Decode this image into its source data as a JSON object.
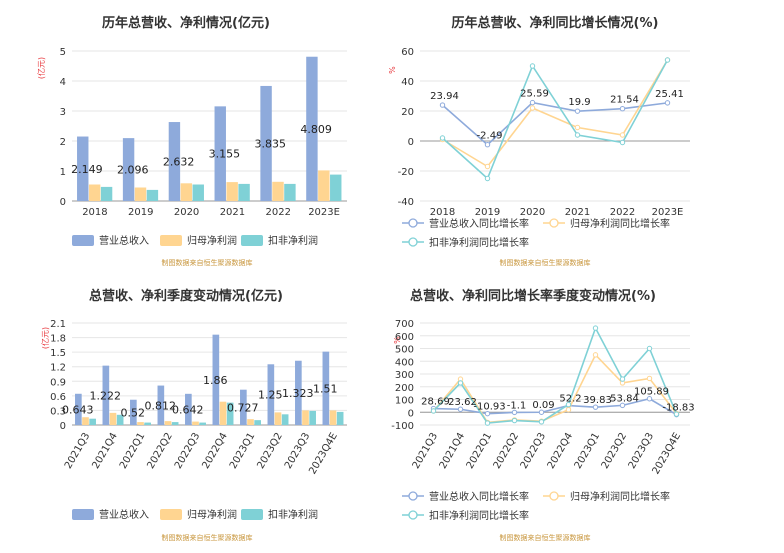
{
  "colors": {
    "revenue": "#8eaadb",
    "net_profit": "#ffd591",
    "deducted_profit": "#7fd1d6",
    "axis": "#333333",
    "grid": "#e6e6e6",
    "unit": "#e8383d",
    "source": "#c8963c"
  },
  "chart_data": [
    {
      "type": "bar",
      "title": "历年总营收、净利情况(亿元)",
      "unit_label": "(亿元)",
      "categories": [
        "2018",
        "2019",
        "2020",
        "2021",
        "2022",
        "2023E"
      ],
      "yticks": [
        "0",
        "1",
        "2",
        "3",
        "4",
        "5"
      ],
      "ylim": [
        0,
        5
      ],
      "series": [
        {
          "name": "营业总收入",
          "values": [
            2.149,
            2.096,
            2.632,
            3.155,
            3.835,
            4.809
          ]
        },
        {
          "name": "归母净利润",
          "values": [
            0.55,
            0.45,
            0.59,
            0.63,
            0.64,
            1.02
          ]
        },
        {
          "name": "扣非净利润",
          "values": [
            0.47,
            0.37,
            0.55,
            0.57,
            0.57,
            0.88
          ]
        }
      ],
      "data_labels": [
        "2.149",
        "2.096",
        "2.632",
        "3.155",
        "3.835",
        "4.809"
      ],
      "legend_position": "bottom",
      "source": "制图数据来自恒生聚源数据库"
    },
    {
      "type": "line",
      "title": "历年总营收、净利同比增长情况(%)",
      "unit_label": "%",
      "categories": [
        "2018",
        "2019",
        "2020",
        "2021",
        "2022",
        "2023E"
      ],
      "yticks": [
        "-40",
        "-20",
        "0",
        "20",
        "40",
        "60"
      ],
      "ylim": [
        -40,
        60
      ],
      "series": [
        {
          "name": "营业总收入同比增长率",
          "values": [
            23.94,
            -2.49,
            25.59,
            19.9,
            21.54,
            25.41
          ]
        },
        {
          "name": "归母净利润同比增长率",
          "values": [
            1,
            -17,
            22,
            9,
            4,
            54
          ]
        },
        {
          "name": "扣非净利润同比增长率",
          "values": [
            2,
            -25,
            50,
            4,
            -1,
            54
          ]
        }
      ],
      "data_labels": [
        "23.94",
        "-2.49",
        "25.59",
        "19.9",
        "21.54",
        "25.41"
      ],
      "legend_position": "bottom",
      "source": "制图数据来自恒生聚源数据库"
    },
    {
      "type": "bar",
      "title": "总营收、净利季度变动情况(亿元)",
      "unit_label": "(亿元)",
      "categories": [
        "2021Q3",
        "2021Q4",
        "2022Q1",
        "2022Q2",
        "2022Q3",
        "2022Q4",
        "2023Q1",
        "2023Q2",
        "2023Q3",
        "2023Q4E"
      ],
      "yticks": [
        "0",
        "0.3",
        "0.6",
        "0.9",
        "1.2",
        "1.5",
        "1.8",
        "2.1"
      ],
      "ylim": [
        0,
        2.1
      ],
      "series": [
        {
          "name": "营业总收入",
          "values": [
            0.643,
            1.222,
            0.52,
            0.812,
            0.642,
            1.86,
            0.727,
            1.25,
            1.323,
            1.51
          ]
        },
        {
          "name": "归母净利润",
          "values": [
            0.16,
            0.25,
            0.06,
            0.08,
            0.07,
            0.48,
            0.12,
            0.26,
            0.3,
            0.3
          ]
        },
        {
          "name": "扣非净利润",
          "values": [
            0.13,
            0.21,
            0.05,
            0.06,
            0.05,
            0.46,
            0.1,
            0.22,
            0.29,
            0.27
          ]
        }
      ],
      "data_labels": [
        "0.643",
        "1.222",
        "0.52",
        "0.812",
        "0.642",
        "1.86",
        "0.727",
        "1.25",
        "1.323",
        "1.51"
      ],
      "legend_position": "bottom",
      "source": "制图数据来自恒生聚源数据库"
    },
    {
      "type": "line",
      "title": "总营收、净利同比增长率季度变动情况(%)",
      "unit_label": "%",
      "categories": [
        "2021Q3",
        "2021Q4",
        "2022Q1",
        "2022Q2",
        "2022Q3",
        "2022Q4",
        "2023Q1",
        "2023Q2",
        "2023Q3",
        "2023Q4E"
      ],
      "yticks": [
        "-100",
        "0",
        "100",
        "200",
        "300",
        "400",
        "500",
        "600",
        "700"
      ],
      "ylim": [
        -100,
        700
      ],
      "series": [
        {
          "name": "营业总收入同比增长率",
          "values": [
            28.69,
            23.62,
            -10.93,
            -1.1,
            0.09,
            52.2,
            39.83,
            53.84,
            105.89,
            -18.83
          ]
        },
        {
          "name": "归母净利润同比增长率",
          "values": [
            10,
            260,
            -80,
            -60,
            -70,
            20,
            450,
            230,
            265,
            -10
          ]
        },
        {
          "name": "扣非净利润同比增长率",
          "values": [
            10,
            230,
            -85,
            -65,
            -75,
            60,
            660,
            260,
            500,
            -15
          ]
        }
      ],
      "data_labels": [
        "28.69",
        "23.62",
        "-10.93",
        "-1.1",
        "0.09",
        "52.2",
        "39.83",
        "53.84",
        "105.89",
        "-18.83"
      ],
      "legend_position": "bottom",
      "source": "制图数据来自恒生聚源数据库"
    }
  ]
}
